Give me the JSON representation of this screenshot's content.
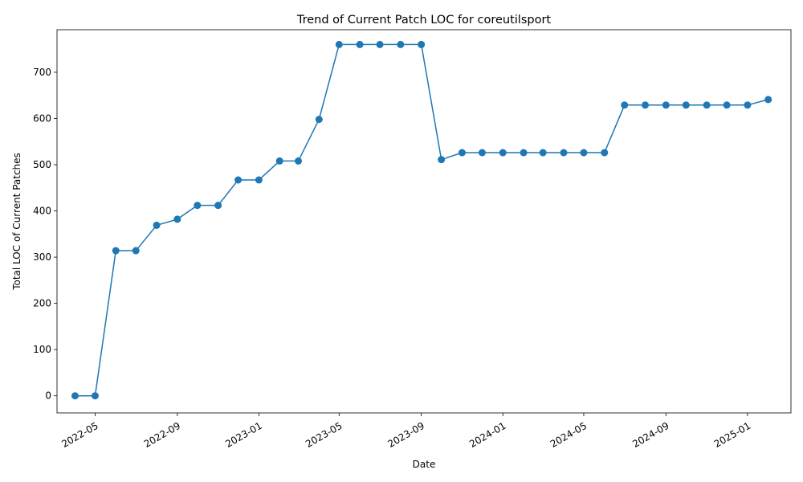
{
  "chart_data": {
    "type": "line",
    "title": "Trend of Current Patch LOC for coreutilsport",
    "xlabel": "Date",
    "ylabel": "Total LOC of Current Patches",
    "x_tick_labels": [
      "2022-05",
      "2022-09",
      "2023-01",
      "2023-05",
      "2023-09",
      "2024-01",
      "2024-05",
      "2024-09",
      "2025-01"
    ],
    "y_ticks": [
      0,
      100,
      200,
      300,
      400,
      500,
      600,
      700
    ],
    "ylim": [
      -37,
      792
    ],
    "xlim": [
      "2022-03-05",
      "2025-03-07"
    ],
    "grid": false,
    "color": "#1f77b4",
    "marker": "circle",
    "series": [
      {
        "x": [
          "2022-04-01",
          "2022-05-01",
          "2022-06-01",
          "2022-07-01",
          "2022-08-01",
          "2022-09-01",
          "2022-10-01",
          "2022-11-01",
          "2022-12-01",
          "2023-01-01",
          "2023-02-01",
          "2023-03-01",
          "2023-04-01",
          "2023-05-01",
          "2023-06-01",
          "2023-07-01",
          "2023-08-01",
          "2023-09-01",
          "2023-10-01",
          "2023-11-01",
          "2023-12-01",
          "2024-01-01",
          "2024-02-01",
          "2024-03-01",
          "2024-04-01",
          "2024-05-01",
          "2024-06-01",
          "2024-07-01",
          "2024-08-01",
          "2024-09-01",
          "2024-10-01",
          "2024-11-01",
          "2024-12-01",
          "2025-01-01",
          "2025-02-01"
        ],
        "values": [
          0,
          0,
          314,
          314,
          369,
          382,
          412,
          412,
          467,
          467,
          508,
          508,
          598,
          760,
          760,
          760,
          760,
          760,
          511,
          526,
          526,
          526,
          526,
          526,
          526,
          526,
          526,
          629,
          629,
          629,
          629,
          629,
          629,
          629,
          641
        ]
      }
    ]
  }
}
